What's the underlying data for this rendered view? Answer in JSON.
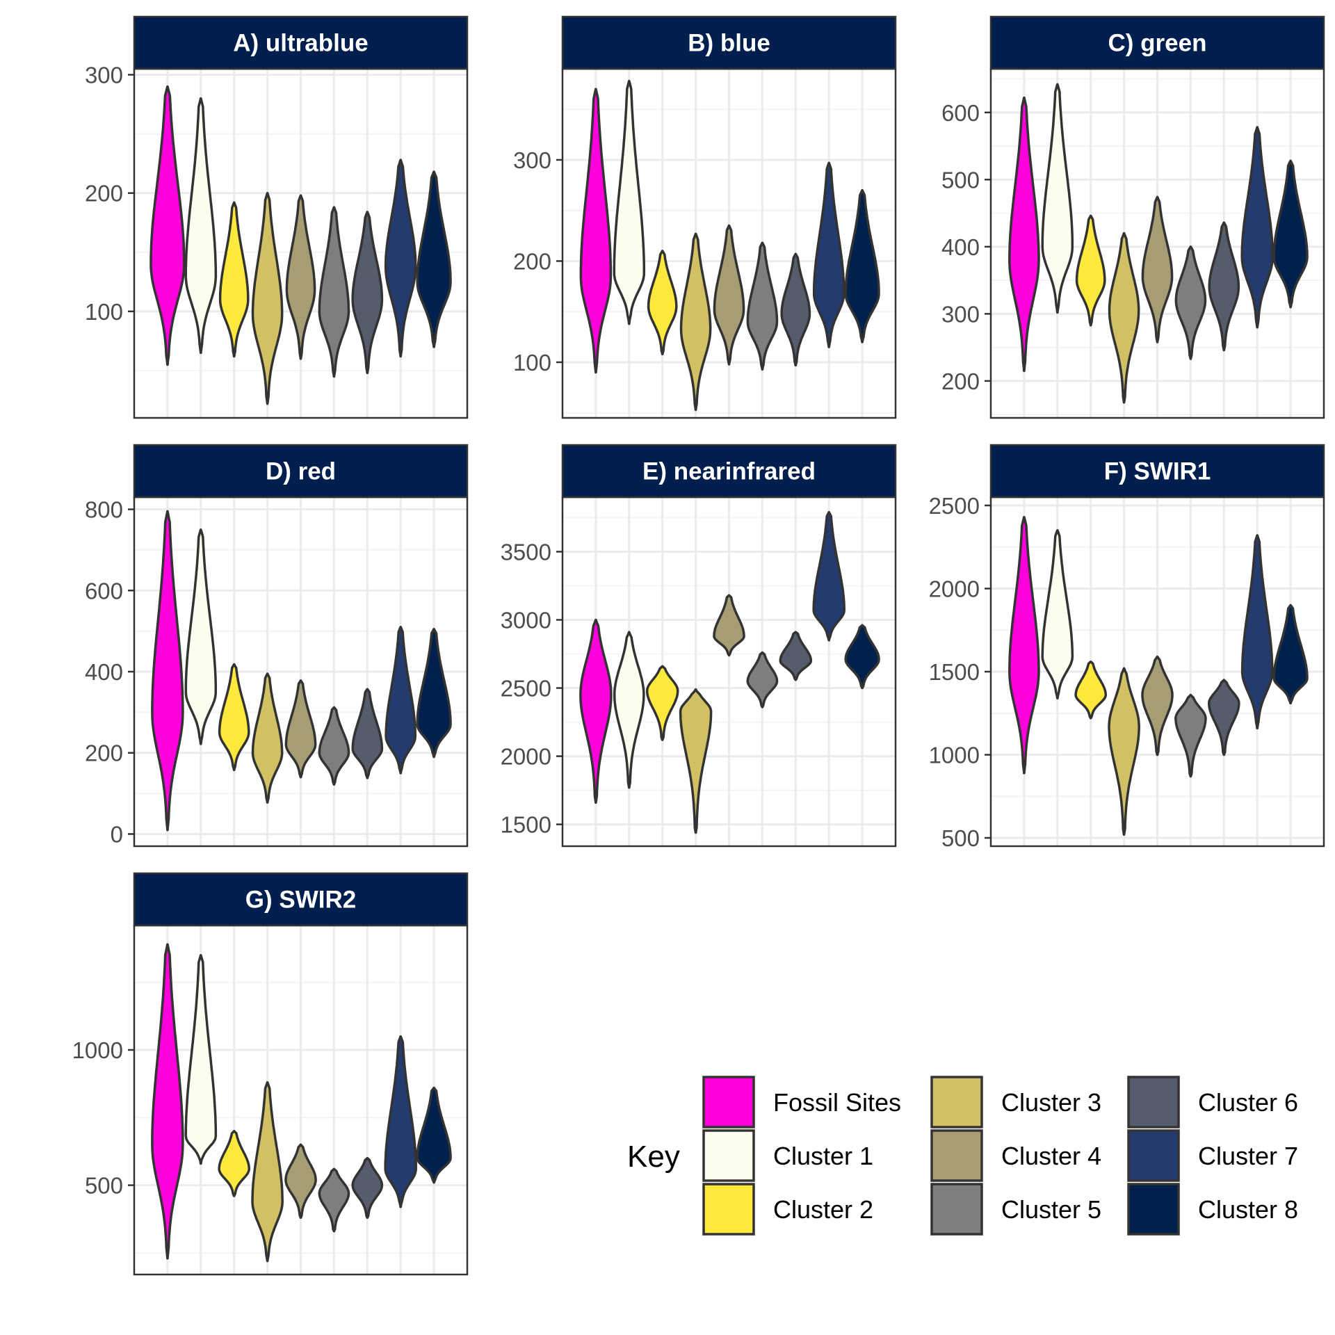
{
  "colors": {
    "strip": "#001e4e",
    "outline": "#333333",
    "grid": "#ebebeb",
    "panel_border": "#333333"
  },
  "legend": {
    "title": "Key",
    "items": [
      {
        "label": "Fossil Sites",
        "color": "#ff00dc"
      },
      {
        "label": "Cluster 1",
        "color": "#fdfdf0"
      },
      {
        "label": "Cluster 2",
        "color": "#fde93e"
      },
      {
        "label": "Cluster 3",
        "color": "#d2c164"
      },
      {
        "label": "Cluster 4",
        "color": "#a69d75"
      },
      {
        "label": "Cluster 5",
        "color": "#7e7e7c"
      },
      {
        "label": "Cluster 6",
        "color": "#575c6d"
      },
      {
        "label": "Cluster 7",
        "color": "#233b6e"
      },
      {
        "label": "Cluster 8",
        "color": "#00204d"
      }
    ]
  },
  "chart_data": [
    {
      "type": "violin",
      "title": "A) ultrablue",
      "ylim": [
        10,
        305
      ],
      "yticks": [
        100,
        200,
        300
      ],
      "violins": [
        {
          "group": "Fossil Sites",
          "min": 55,
          "max": 290,
          "peak": 140,
          "width": 0.5
        },
        {
          "group": "Cluster 1",
          "min": 65,
          "max": 280,
          "peak": 130,
          "width": 0.45
        },
        {
          "group": "Cluster 2",
          "min": 62,
          "max": 192,
          "peak": 110,
          "width": 0.42
        },
        {
          "group": "Cluster 3",
          "min": 22,
          "max": 200,
          "peak": 98,
          "width": 0.44
        },
        {
          "group": "Cluster 4",
          "min": 60,
          "max": 198,
          "peak": 118,
          "width": 0.42
        },
        {
          "group": "Cluster 5",
          "min": 45,
          "max": 188,
          "peak": 100,
          "width": 0.44
        },
        {
          "group": "Cluster 6",
          "min": 48,
          "max": 184,
          "peak": 110,
          "width": 0.44
        },
        {
          "group": "Cluster 7",
          "min": 62,
          "max": 228,
          "peak": 138,
          "width": 0.45
        },
        {
          "group": "Cluster 8",
          "min": 70,
          "max": 218,
          "peak": 125,
          "width": 0.5
        }
      ]
    },
    {
      "type": "violin",
      "title": "B) blue",
      "ylim": [
        45,
        390
      ],
      "yticks": [
        100,
        200,
        300
      ],
      "violins": [
        {
          "group": "Fossil Sites",
          "min": 90,
          "max": 370,
          "peak": 185,
          "width": 0.45
        },
        {
          "group": "Cluster 1",
          "min": 138,
          "max": 378,
          "peak": 188,
          "width": 0.45
        },
        {
          "group": "Cluster 2",
          "min": 108,
          "max": 210,
          "peak": 155,
          "width": 0.42
        },
        {
          "group": "Cluster 3",
          "min": 53,
          "max": 227,
          "peak": 133,
          "width": 0.44
        },
        {
          "group": "Cluster 4",
          "min": 98,
          "max": 235,
          "peak": 152,
          "width": 0.44
        },
        {
          "group": "Cluster 5",
          "min": 93,
          "max": 218,
          "peak": 140,
          "width": 0.44
        },
        {
          "group": "Cluster 6",
          "min": 97,
          "max": 207,
          "peak": 148,
          "width": 0.42
        },
        {
          "group": "Cluster 7",
          "min": 115,
          "max": 297,
          "peak": 168,
          "width": 0.45
        },
        {
          "group": "Cluster 8",
          "min": 120,
          "max": 270,
          "peak": 168,
          "width": 0.5
        }
      ]
    },
    {
      "type": "violin",
      "title": "C) green",
      "ylim": [
        145,
        665
      ],
      "yticks": [
        200,
        300,
        400,
        500,
        600
      ],
      "violins": [
        {
          "group": "Fossil Sites",
          "min": 215,
          "max": 622,
          "peak": 380,
          "width": 0.44
        },
        {
          "group": "Cluster 1",
          "min": 302,
          "max": 642,
          "peak": 400,
          "width": 0.45
        },
        {
          "group": "Cluster 2",
          "min": 283,
          "max": 446,
          "peak": 350,
          "width": 0.42
        },
        {
          "group": "Cluster 3",
          "min": 168,
          "max": 420,
          "peak": 305,
          "width": 0.44
        },
        {
          "group": "Cluster 4",
          "min": 258,
          "max": 474,
          "peak": 355,
          "width": 0.44
        },
        {
          "group": "Cluster 5",
          "min": 233,
          "max": 400,
          "peak": 320,
          "width": 0.44
        },
        {
          "group": "Cluster 6",
          "min": 246,
          "max": 436,
          "peak": 340,
          "width": 0.44
        },
        {
          "group": "Cluster 7",
          "min": 280,
          "max": 578,
          "peak": 385,
          "width": 0.46
        },
        {
          "group": "Cluster 8",
          "min": 310,
          "max": 528,
          "peak": 385,
          "width": 0.5
        }
      ]
    },
    {
      "type": "violin",
      "title": "D) red",
      "ylim": [
        -30,
        830
      ],
      "yticks": [
        0,
        200,
        400,
        600,
        800
      ],
      "violins": [
        {
          "group": "Fossil Sites",
          "min": 10,
          "max": 795,
          "peak": 300,
          "width": 0.46
        },
        {
          "group": "Cluster 1",
          "min": 222,
          "max": 750,
          "peak": 350,
          "width": 0.45
        },
        {
          "group": "Cluster 2",
          "min": 158,
          "max": 418,
          "peak": 250,
          "width": 0.44
        },
        {
          "group": "Cluster 3",
          "min": 78,
          "max": 395,
          "peak": 200,
          "width": 0.44
        },
        {
          "group": "Cluster 4",
          "min": 140,
          "max": 378,
          "peak": 220,
          "width": 0.44
        },
        {
          "group": "Cluster 5",
          "min": 122,
          "max": 312,
          "peak": 200,
          "width": 0.44
        },
        {
          "group": "Cluster 6",
          "min": 138,
          "max": 357,
          "peak": 210,
          "width": 0.44
        },
        {
          "group": "Cluster 7",
          "min": 150,
          "max": 510,
          "peak": 240,
          "width": 0.44
        },
        {
          "group": "Cluster 8",
          "min": 190,
          "max": 505,
          "peak": 270,
          "width": 0.5
        }
      ]
    },
    {
      "type": "violin",
      "title": "E) nearinfrared",
      "ylim": [
        1340,
        3900
      ],
      "yticks": [
        1500,
        2000,
        2500,
        3000,
        3500
      ],
      "violins": [
        {
          "group": "Fossil Sites",
          "min": 1660,
          "max": 3000,
          "peak": 2450,
          "width": 0.46
        },
        {
          "group": "Cluster 1",
          "min": 1770,
          "max": 2910,
          "peak": 2450,
          "width": 0.44
        },
        {
          "group": "Cluster 2",
          "min": 2120,
          "max": 2660,
          "peak": 2480,
          "width": 0.46
        },
        {
          "group": "Cluster 3",
          "min": 1440,
          "max": 2490,
          "peak": 2330,
          "width": 0.46
        },
        {
          "group": "Cluster 4",
          "min": 2740,
          "max": 3180,
          "peak": 2880,
          "width": 0.45
        },
        {
          "group": "Cluster 5",
          "min": 2360,
          "max": 2760,
          "peak": 2550,
          "width": 0.44
        },
        {
          "group": "Cluster 6",
          "min": 2560,
          "max": 2910,
          "peak": 2700,
          "width": 0.46
        },
        {
          "group": "Cluster 7",
          "min": 2850,
          "max": 3790,
          "peak": 3070,
          "width": 0.46
        },
        {
          "group": "Cluster 8",
          "min": 2500,
          "max": 2960,
          "peak": 2710,
          "width": 0.5
        }
      ]
    },
    {
      "type": "violin",
      "title": "F) SWIR1",
      "ylim": [
        450,
        2550
      ],
      "yticks": [
        500,
        1000,
        1500,
        2000,
        2500
      ],
      "violins": [
        {
          "group": "Fossil Sites",
          "min": 890,
          "max": 2430,
          "peak": 1500,
          "width": 0.44
        },
        {
          "group": "Cluster 1",
          "min": 1340,
          "max": 2350,
          "peak": 1590,
          "width": 0.45
        },
        {
          "group": "Cluster 2",
          "min": 1220,
          "max": 1560,
          "peak": 1360,
          "width": 0.45
        },
        {
          "group": "Cluster 3",
          "min": 520,
          "max": 1520,
          "peak": 1170,
          "width": 0.45
        },
        {
          "group": "Cluster 4",
          "min": 1000,
          "max": 1590,
          "peak": 1360,
          "width": 0.45
        },
        {
          "group": "Cluster 5",
          "min": 870,
          "max": 1360,
          "peak": 1220,
          "width": 0.45
        },
        {
          "group": "Cluster 6",
          "min": 1000,
          "max": 1450,
          "peak": 1310,
          "width": 0.45
        },
        {
          "group": "Cluster 7",
          "min": 1160,
          "max": 2320,
          "peak": 1500,
          "width": 0.45
        },
        {
          "group": "Cluster 8",
          "min": 1310,
          "max": 1900,
          "peak": 1460,
          "width": 0.5
        }
      ]
    },
    {
      "type": "violin",
      "title": "G) SWIR2",
      "ylim": [
        170,
        1460
      ],
      "yticks": [
        500,
        1000
      ],
      "violins": [
        {
          "group": "Fossil Sites",
          "min": 230,
          "max": 1390,
          "peak": 650,
          "width": 0.46
        },
        {
          "group": "Cluster 1",
          "min": 580,
          "max": 1350,
          "peak": 680,
          "width": 0.45
        },
        {
          "group": "Cluster 2",
          "min": 460,
          "max": 700,
          "peak": 560,
          "width": 0.45
        },
        {
          "group": "Cluster 3",
          "min": 220,
          "max": 880,
          "peak": 440,
          "width": 0.45
        },
        {
          "group": "Cluster 4",
          "min": 380,
          "max": 650,
          "peak": 520,
          "width": 0.45
        },
        {
          "group": "Cluster 5",
          "min": 330,
          "max": 560,
          "peak": 470,
          "width": 0.44
        },
        {
          "group": "Cluster 6",
          "min": 380,
          "max": 600,
          "peak": 500,
          "width": 0.44
        },
        {
          "group": "Cluster 7",
          "min": 420,
          "max": 1050,
          "peak": 560,
          "width": 0.46
        },
        {
          "group": "Cluster 8",
          "min": 510,
          "max": 860,
          "peak": 600,
          "width": 0.5
        }
      ]
    }
  ]
}
